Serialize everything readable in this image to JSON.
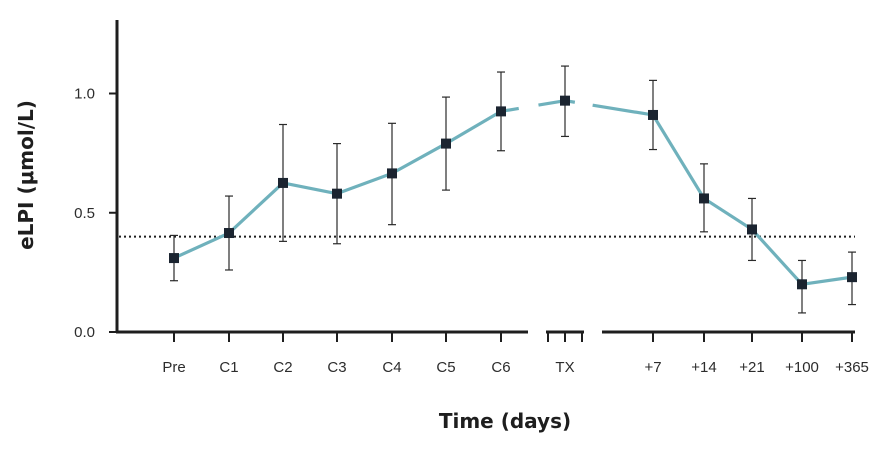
{
  "chart_data": {
    "type": "line",
    "xlabel": "Time (days)",
    "ylabel": "eLPI (μmol/L)",
    "ylim": [
      0,
      1.25
    ],
    "y_ticks": [
      0.0,
      0.5,
      1.0
    ],
    "y_tick_labels": [
      "0.0",
      "0.5",
      "1.0"
    ],
    "categories": [
      "Pre",
      "C1",
      "C2",
      "C3",
      "C4",
      "C5",
      "C6",
      "TX",
      "+7",
      "+14",
      "+21",
      "+100",
      "+365"
    ],
    "series": [
      {
        "values": [
          0.31,
          0.415,
          0.625,
          0.58,
          0.665,
          0.79,
          0.925,
          0.97,
          0.91,
          0.56,
          0.43,
          0.2,
          0.23
        ],
        "error_upper": [
          0.405,
          0.57,
          0.87,
          0.79,
          0.875,
          0.985,
          1.09,
          1.115,
          1.055,
          0.705,
          0.56,
          0.3,
          0.335
        ],
        "error_lower": [
          0.215,
          0.26,
          0.38,
          0.37,
          0.45,
          0.595,
          0.76,
          0.82,
          0.765,
          0.42,
          0.3,
          0.08,
          0.115
        ]
      }
    ],
    "reference_line": {
      "value": 0.4,
      "style": "dotted"
    },
    "x_axis_breaks": "around TX",
    "grid": false,
    "colors": {
      "line": "#6fb1bc",
      "marker": "#1b2430",
      "axis": "#1e1e1e",
      "error_bar": "#2a2a2a",
      "reference": "#1e1e1e"
    }
  }
}
